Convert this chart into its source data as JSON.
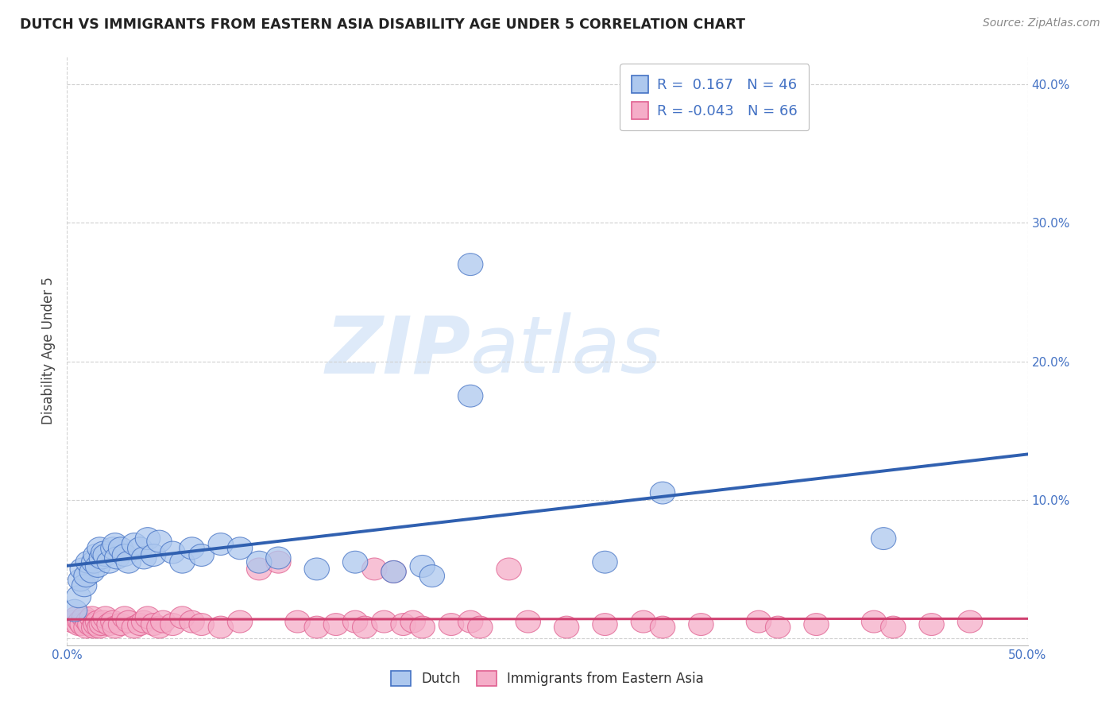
{
  "title": "DUTCH VS IMMIGRANTS FROM EASTERN ASIA DISABILITY AGE UNDER 5 CORRELATION CHART",
  "source": "Source: ZipAtlas.com",
  "ylabel": "Disability Age Under 5",
  "xlim": [
    0.0,
    0.5
  ],
  "ylim": [
    -0.005,
    0.42
  ],
  "yticks": [
    0.0,
    0.1,
    0.2,
    0.3,
    0.4
  ],
  "xticks": [
    0.0,
    0.5
  ],
  "dutch_R": 0.167,
  "dutch_N": 46,
  "immigrant_R": -0.043,
  "immigrant_N": 66,
  "dutch_color": "#adc8ee",
  "dutch_edge_color": "#4472C4",
  "immigrant_color": "#f5adc8",
  "immigrant_edge_color": "#e06090",
  "dutch_line_color": "#3060b0",
  "immigrant_line_color": "#d04070",
  "background_color": "#ffffff",
  "watermark_zip": "ZIP",
  "watermark_atlas": "atlas",
  "tick_color": "#4472C4",
  "dutch_x": [
    0.004,
    0.006,
    0.007,
    0.008,
    0.009,
    0.01,
    0.011,
    0.013,
    0.014,
    0.015,
    0.016,
    0.017,
    0.018,
    0.019,
    0.02,
    0.022,
    0.024,
    0.025,
    0.026,
    0.028,
    0.03,
    0.032,
    0.035,
    0.038,
    0.04,
    0.042,
    0.045,
    0.048,
    0.055,
    0.06,
    0.065,
    0.07,
    0.08,
    0.09,
    0.1,
    0.11,
    0.13,
    0.15,
    0.17,
    0.185,
    0.19,
    0.21,
    0.21,
    0.28,
    0.31,
    0.425
  ],
  "dutch_y": [
    0.02,
    0.03,
    0.042,
    0.05,
    0.038,
    0.045,
    0.055,
    0.048,
    0.055,
    0.06,
    0.052,
    0.065,
    0.058,
    0.062,
    0.06,
    0.055,
    0.065,
    0.068,
    0.058,
    0.065,
    0.06,
    0.055,
    0.068,
    0.065,
    0.058,
    0.072,
    0.06,
    0.07,
    0.062,
    0.055,
    0.065,
    0.06,
    0.068,
    0.065,
    0.055,
    0.058,
    0.05,
    0.055,
    0.048,
    0.052,
    0.045,
    0.27,
    0.175,
    0.055,
    0.105,
    0.072
  ],
  "immigrant_x": [
    0.003,
    0.005,
    0.006,
    0.007,
    0.008,
    0.009,
    0.01,
    0.011,
    0.012,
    0.013,
    0.014,
    0.015,
    0.016,
    0.017,
    0.018,
    0.019,
    0.02,
    0.022,
    0.024,
    0.025,
    0.028,
    0.03,
    0.032,
    0.035,
    0.038,
    0.04,
    0.042,
    0.045,
    0.048,
    0.05,
    0.055,
    0.06,
    0.065,
    0.07,
    0.08,
    0.09,
    0.1,
    0.11,
    0.12,
    0.13,
    0.14,
    0.15,
    0.155,
    0.16,
    0.165,
    0.17,
    0.175,
    0.18,
    0.185,
    0.2,
    0.21,
    0.215,
    0.23,
    0.24,
    0.26,
    0.28,
    0.3,
    0.31,
    0.33,
    0.36,
    0.37,
    0.39,
    0.42,
    0.43,
    0.45,
    0.47
  ],
  "immigrant_y": [
    0.012,
    0.015,
    0.01,
    0.012,
    0.01,
    0.015,
    0.008,
    0.012,
    0.01,
    0.015,
    0.008,
    0.01,
    0.012,
    0.008,
    0.01,
    0.012,
    0.015,
    0.01,
    0.012,
    0.008,
    0.01,
    0.015,
    0.012,
    0.008,
    0.01,
    0.012,
    0.015,
    0.01,
    0.008,
    0.012,
    0.01,
    0.015,
    0.012,
    0.01,
    0.008,
    0.012,
    0.05,
    0.055,
    0.012,
    0.008,
    0.01,
    0.012,
    0.008,
    0.05,
    0.012,
    0.048,
    0.01,
    0.012,
    0.008,
    0.01,
    0.012,
    0.008,
    0.05,
    0.012,
    0.008,
    0.01,
    0.012,
    0.008,
    0.01,
    0.012,
    0.008,
    0.01,
    0.012,
    0.008,
    0.01,
    0.012
  ]
}
